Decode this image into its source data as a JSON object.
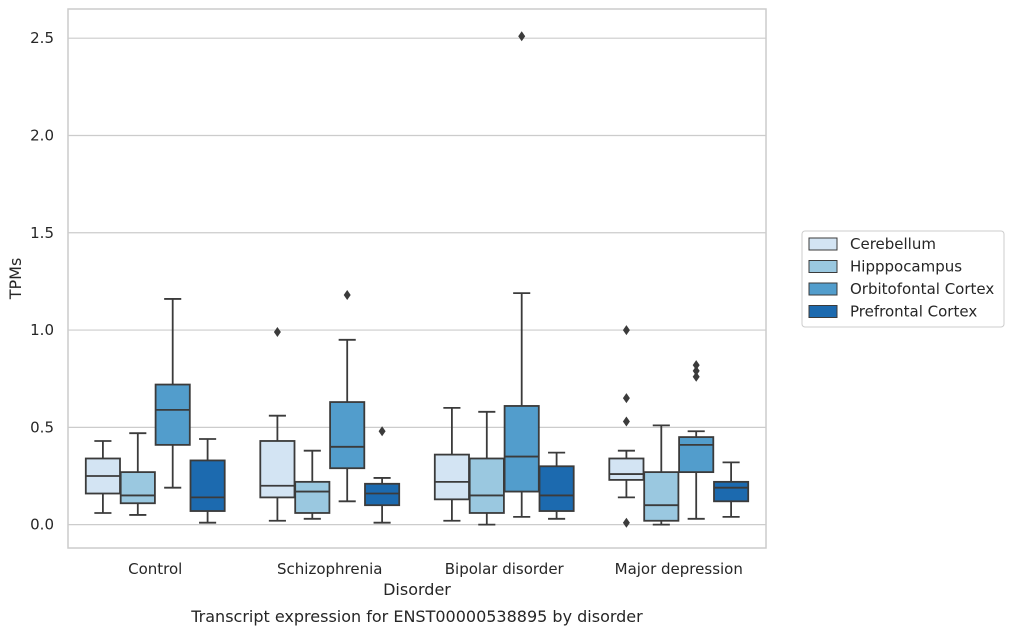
{
  "caption": "Transcript expression for ENST00000538895 by disorder",
  "chart_data": {
    "type": "box",
    "xlabel": "Disorder",
    "ylabel": "TPMs",
    "ylim": [
      -0.12,
      2.65
    ],
    "yticks": [
      "0.0",
      "0.5",
      "1.0",
      "1.5",
      "2.0",
      "2.5"
    ],
    "grid": "horizontal",
    "legend_position": "right",
    "categories": [
      "Control",
      "Schizophrenia",
      "Bipolar disorder",
      "Major depression"
    ],
    "series": [
      {
        "name": "Cerebellum",
        "color": "#d3e4f3",
        "boxes": [
          {
            "whislo": 0.06,
            "q1": 0.16,
            "med": 0.25,
            "q3": 0.34,
            "whishi": 0.43,
            "fliers": []
          },
          {
            "whislo": 0.02,
            "q1": 0.14,
            "med": 0.2,
            "q3": 0.43,
            "whishi": 0.56,
            "fliers": [
              0.99
            ]
          },
          {
            "whislo": 0.02,
            "q1": 0.13,
            "med": 0.22,
            "q3": 0.36,
            "whishi": 0.6,
            "fliers": []
          },
          {
            "whislo": 0.14,
            "q1": 0.23,
            "med": 0.26,
            "q3": 0.34,
            "whishi": 0.38,
            "fliers": [
              0.01,
              0.53,
              0.65,
              1.0
            ]
          }
        ]
      },
      {
        "name": "Hipppocampus",
        "color": "#9ac8e0",
        "boxes": [
          {
            "whislo": 0.05,
            "q1": 0.11,
            "med": 0.15,
            "q3": 0.27,
            "whishi": 0.47,
            "fliers": []
          },
          {
            "whislo": 0.03,
            "q1": 0.06,
            "med": 0.17,
            "q3": 0.22,
            "whishi": 0.38,
            "fliers": []
          },
          {
            "whislo": 0.0,
            "q1": 0.06,
            "med": 0.15,
            "q3": 0.34,
            "whishi": 0.58,
            "fliers": []
          },
          {
            "whislo": 0.0,
            "q1": 0.02,
            "med": 0.1,
            "q3": 0.27,
            "whishi": 0.51,
            "fliers": []
          }
        ]
      },
      {
        "name": "Orbitofontal Cortex",
        "color": "#529dcc",
        "boxes": [
          {
            "whislo": 0.19,
            "q1": 0.41,
            "med": 0.59,
            "q3": 0.72,
            "whishi": 1.16,
            "fliers": []
          },
          {
            "whislo": 0.12,
            "q1": 0.29,
            "med": 0.4,
            "q3": 0.63,
            "whishi": 0.95,
            "fliers": [
              1.18
            ]
          },
          {
            "whislo": 0.04,
            "q1": 0.17,
            "med": 0.35,
            "q3": 0.61,
            "whishi": 1.19,
            "fliers": [
              2.51
            ]
          },
          {
            "whislo": 0.03,
            "q1": 0.27,
            "med": 0.41,
            "q3": 0.45,
            "whishi": 0.48,
            "fliers": [
              0.76,
              0.79,
              0.82
            ]
          }
        ]
      },
      {
        "name": "Prefrontal Cortex",
        "color": "#1c6aaf",
        "boxes": [
          {
            "whislo": 0.01,
            "q1": 0.07,
            "med": 0.14,
            "q3": 0.33,
            "whishi": 0.44,
            "fliers": []
          },
          {
            "whislo": 0.01,
            "q1": 0.1,
            "med": 0.16,
            "q3": 0.21,
            "whishi": 0.24,
            "fliers": [
              0.48
            ]
          },
          {
            "whislo": 0.03,
            "q1": 0.07,
            "med": 0.15,
            "q3": 0.3,
            "whishi": 0.37,
            "fliers": []
          },
          {
            "whislo": 0.04,
            "q1": 0.12,
            "med": 0.19,
            "q3": 0.22,
            "whishi": 0.32,
            "fliers": []
          }
        ]
      }
    ]
  }
}
